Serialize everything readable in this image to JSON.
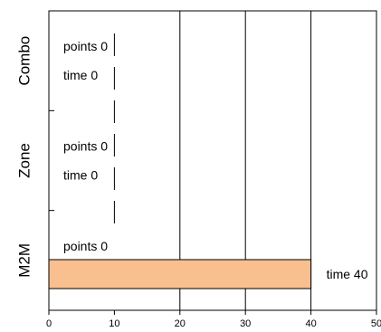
{
  "chart_data": {
    "type": "bar",
    "orientation": "horizontal",
    "title": "",
    "xlabel": "",
    "ylabel": "",
    "categories": [
      "Combo",
      "Zone",
      "M2M"
    ],
    "series": [
      {
        "values": [
          0,
          0,
          40
        ]
      }
    ],
    "points": [
      0,
      0,
      0
    ],
    "time": [
      0,
      0,
      40
    ],
    "point_label_prefix": "points",
    "time_label_prefix": "time",
    "xlim": [
      0,
      50
    ],
    "x_ticks": [
      0,
      10,
      20,
      30,
      40,
      50
    ],
    "grid": "vertical lines at 20, 30, 40",
    "legend": "none",
    "colors": {
      "bar_fill": "#f9bf8f",
      "bar_stroke": "#000000",
      "axis": "#000000"
    }
  }
}
